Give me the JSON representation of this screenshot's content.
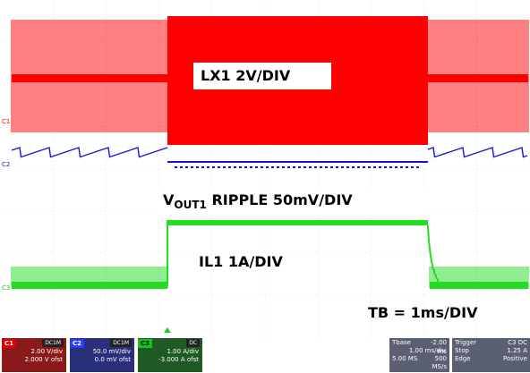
{
  "screen": {
    "annotations": {
      "lx": "LX1 2V/DIV",
      "vout_main": "V",
      "vout_sub": "OUT1",
      "vout_rest": " RIPPLE  50mV/DIV",
      "il": "IL1 1A/DIV",
      "tb": "TB = 1ms/DIV"
    },
    "markers": {
      "c1": "C1",
      "c2": "C2",
      "c3": "C3"
    },
    "colors": {
      "ch1": "#ff0000",
      "ch2": "#1515d8",
      "ch3": "#22dd22",
      "grid": "#d0d0d0",
      "trigger": "#22cc22"
    }
  },
  "status_bar": {
    "ch1": {
      "tag": "C1",
      "badge": "DC1M",
      "scale": "2.00 V/div",
      "offset": "2.000 V ofst"
    },
    "ch2": {
      "tag": "C2",
      "badge": "DC1M",
      "scale": "50.0 mV/div",
      "offset": "0.0 mV ofst"
    },
    "ch3": {
      "tag": "C3",
      "badge": "DC",
      "scale": "1.00 A/div",
      "offset": "-3.000 A ofst"
    },
    "timebase": {
      "label": "Tbase",
      "delay": "-2.00 ms",
      "scale": "1.00 ms/div",
      "samples": "5.00 MS",
      "rate": "500 MS/s"
    },
    "trigger": {
      "label": "Trigger",
      "badge": "C3 DC",
      "mode": "Stop",
      "level": "1.25 A",
      "type": "Edge",
      "slope": "Positive"
    }
  }
}
